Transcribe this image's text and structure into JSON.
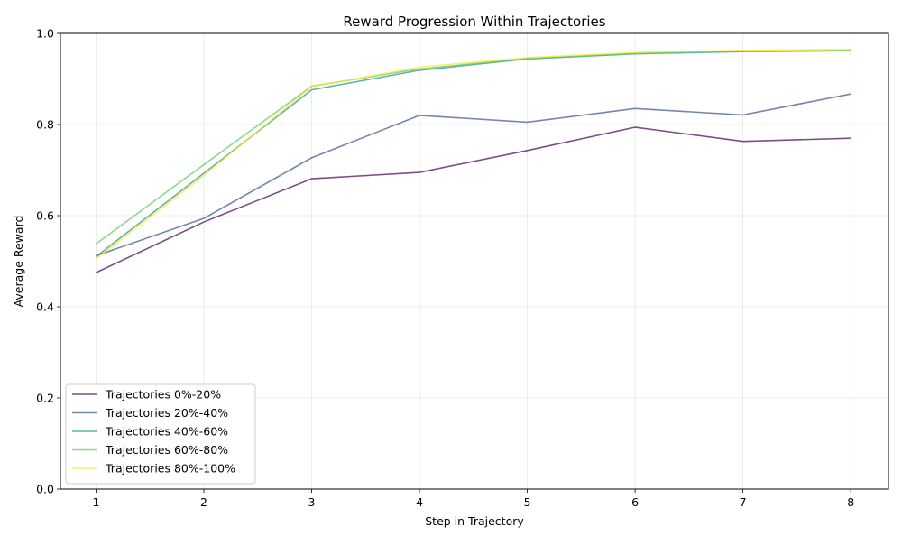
{
  "chart_data": {
    "type": "line",
    "title": "Reward Progression Within Trajectories",
    "xlabel": "Step in Trajectory",
    "ylabel": "Average Reward",
    "x": [
      1,
      2,
      3,
      4,
      5,
      6,
      7,
      8
    ],
    "xlim": [
      0.67,
      8.35
    ],
    "ylim": [
      0.0,
      1.0
    ],
    "xticks": [
      1,
      2,
      3,
      4,
      5,
      6,
      7,
      8
    ],
    "yticks": [
      0.0,
      0.2,
      0.4,
      0.6,
      0.8,
      1.0
    ],
    "ytick_labels": [
      "0.0",
      "0.2",
      "0.4",
      "0.6",
      "0.8",
      "1.0"
    ],
    "grid": true,
    "legend_position": "lower-left",
    "series": [
      {
        "name": "Trajectories 0%-20%",
        "color": "#440154",
        "values": [
          0.475,
          0.586,
          0.681,
          0.695,
          0.743,
          0.794,
          0.763,
          0.77
        ]
      },
      {
        "name": "Trajectories 20%-40%",
        "color": "#3b528b",
        "values": [
          0.512,
          0.594,
          0.727,
          0.82,
          0.805,
          0.835,
          0.821,
          0.867
        ]
      },
      {
        "name": "Trajectories 40%-60%",
        "color": "#21918c",
        "values": [
          0.51,
          0.693,
          0.876,
          0.919,
          0.944,
          0.955,
          0.96,
          0.962
        ]
      },
      {
        "name": "Trajectories 60%-80%",
        "color": "#5ec962",
        "values": [
          0.538,
          0.712,
          0.884,
          0.922,
          0.945,
          0.956,
          0.961,
          0.963
        ]
      },
      {
        "name": "Trajectories 80%-100%",
        "color": "#fde725",
        "values": [
          0.505,
          0.688,
          0.883,
          0.926,
          0.947,
          0.958,
          0.963,
          0.965
        ]
      }
    ]
  }
}
